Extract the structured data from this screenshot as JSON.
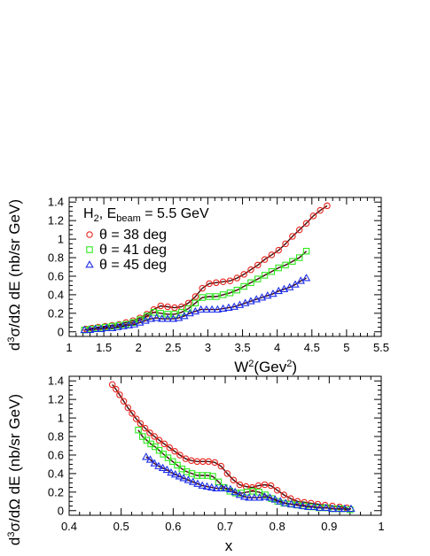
{
  "chart_data": [
    {
      "type": "scatter",
      "xlabel": "W²(Gev²)",
      "ylabel": "d³σ/dΩ dE (nb/sr GeV)",
      "xlim": [
        1,
        5.5
      ],
      "ylim": [
        -0.05,
        1.45
      ],
      "x_ticks": [
        "1",
        "1.5",
        "2",
        "2.5",
        "3",
        "3.5",
        "4",
        "4.5",
        "5",
        "5.5"
      ],
      "y_ticks": [
        "0",
        "0.2",
        "0.4",
        "0.6",
        "0.8",
        "1",
        "1.2",
        "1.4"
      ],
      "annotation": "H₂, E_beam = 5.5 GeV",
      "legend_position": "top-left",
      "series": [
        {
          "name": "θ = 38 deg",
          "marker": "circle",
          "color": "#e8251e",
          "points": [
            [
              1.24,
              0.03
            ],
            [
              1.33,
              0.04
            ],
            [
              1.42,
              0.05
            ],
            [
              1.52,
              0.06
            ],
            [
              1.62,
              0.07
            ],
            [
              1.72,
              0.08
            ],
            [
              1.82,
              0.1
            ],
            [
              1.92,
              0.12
            ],
            [
              2.02,
              0.15
            ],
            [
              2.12,
              0.19
            ],
            [
              2.22,
              0.24
            ],
            [
              2.32,
              0.28
            ],
            [
              2.42,
              0.27
            ],
            [
              2.52,
              0.26
            ],
            [
              2.62,
              0.27
            ],
            [
              2.72,
              0.31
            ],
            [
              2.82,
              0.38
            ],
            [
              2.92,
              0.47
            ],
            [
              3.02,
              0.52
            ],
            [
              3.12,
              0.53
            ],
            [
              3.22,
              0.54
            ],
            [
              3.32,
              0.55
            ],
            [
              3.42,
              0.58
            ],
            [
              3.52,
              0.62
            ],
            [
              3.62,
              0.67
            ],
            [
              3.72,
              0.72
            ],
            [
              3.82,
              0.78
            ],
            [
              3.92,
              0.83
            ],
            [
              4.02,
              0.88
            ],
            [
              4.12,
              0.95
            ],
            [
              4.22,
              1.03
            ],
            [
              4.32,
              1.1
            ],
            [
              4.42,
              1.17
            ],
            [
              4.52,
              1.25
            ],
            [
              4.62,
              1.31
            ],
            [
              4.72,
              1.36
            ]
          ]
        },
        {
          "name": "θ = 41 deg",
          "marker": "square",
          "color": "#2ee81e",
          "points": [
            [
              1.22,
              0.02
            ],
            [
              1.32,
              0.03
            ],
            [
              1.42,
              0.04
            ],
            [
              1.52,
              0.05
            ],
            [
              1.62,
              0.06
            ],
            [
              1.72,
              0.07
            ],
            [
              1.82,
              0.08
            ],
            [
              1.92,
              0.1
            ],
            [
              2.02,
              0.13
            ],
            [
              2.12,
              0.17
            ],
            [
              2.22,
              0.21
            ],
            [
              2.32,
              0.2
            ],
            [
              2.42,
              0.19
            ],
            [
              2.52,
              0.19
            ],
            [
              2.62,
              0.21
            ],
            [
              2.72,
              0.25
            ],
            [
              2.82,
              0.31
            ],
            [
              2.92,
              0.37
            ],
            [
              3.02,
              0.38
            ],
            [
              3.12,
              0.38
            ],
            [
              3.22,
              0.4
            ],
            [
              3.32,
              0.42
            ],
            [
              3.42,
              0.45
            ],
            [
              3.52,
              0.49
            ],
            [
              3.62,
              0.53
            ],
            [
              3.72,
              0.57
            ],
            [
              3.82,
              0.61
            ],
            [
              3.92,
              0.65
            ],
            [
              4.02,
              0.69
            ],
            [
              4.12,
              0.72
            ],
            [
              4.22,
              0.76
            ],
            [
              4.32,
              0.8
            ],
            [
              4.42,
              0.87
            ]
          ]
        },
        {
          "name": "θ = 45 deg",
          "marker": "triangle",
          "color": "#1e2ee8",
          "points": [
            [
              1.22,
              0.02
            ],
            [
              1.3,
              0.02
            ],
            [
              1.38,
              0.03
            ],
            [
              1.46,
              0.03
            ],
            [
              1.54,
              0.04
            ],
            [
              1.62,
              0.04
            ],
            [
              1.7,
              0.05
            ],
            [
              1.78,
              0.06
            ],
            [
              1.86,
              0.07
            ],
            [
              1.94,
              0.08
            ],
            [
              2.02,
              0.1
            ],
            [
              2.1,
              0.12
            ],
            [
              2.18,
              0.14
            ],
            [
              2.26,
              0.15
            ],
            [
              2.34,
              0.14
            ],
            [
              2.42,
              0.14
            ],
            [
              2.5,
              0.14
            ],
            [
              2.58,
              0.15
            ],
            [
              2.66,
              0.17
            ],
            [
              2.74,
              0.2
            ],
            [
              2.82,
              0.22
            ],
            [
              2.9,
              0.24
            ],
            [
              2.98,
              0.24
            ],
            [
              3.06,
              0.24
            ],
            [
              3.14,
              0.24
            ],
            [
              3.22,
              0.25
            ],
            [
              3.3,
              0.26
            ],
            [
              3.38,
              0.27
            ],
            [
              3.46,
              0.29
            ],
            [
              3.54,
              0.31
            ],
            [
              3.62,
              0.33
            ],
            [
              3.7,
              0.35
            ],
            [
              3.78,
              0.37
            ],
            [
              3.86,
              0.39
            ],
            [
              3.94,
              0.41
            ],
            [
              4.02,
              0.44
            ],
            [
              4.1,
              0.46
            ],
            [
              4.18,
              0.48
            ],
            [
              4.26,
              0.51
            ],
            [
              4.34,
              0.55
            ],
            [
              4.42,
              0.58
            ]
          ]
        }
      ]
    },
    {
      "type": "scatter",
      "xlabel": "x",
      "ylabel": "d³σ/dΩ dE (nb/sr GeV)",
      "xlim": [
        0.4,
        1.0
      ],
      "ylim": [
        -0.05,
        1.45
      ],
      "x_ticks": [
        "0.4",
        "0.5",
        "0.6",
        "0.7",
        "0.8",
        "0.9",
        "1"
      ],
      "y_ticks": [
        "0",
        "0.2",
        "0.4",
        "0.6",
        "0.8",
        "1",
        "1.2",
        "1.4"
      ],
      "series": [
        {
          "name": "θ = 38 deg",
          "marker": "circle",
          "color": "#e8251e",
          "points": [
            [
              0.483,
              1.36
            ],
            [
              0.49,
              1.31
            ],
            [
              0.497,
              1.25
            ],
            [
              0.505,
              1.18
            ],
            [
              0.513,
              1.11
            ],
            [
              0.521,
              1.05
            ],
            [
              0.529,
              0.99
            ],
            [
              0.537,
              0.94
            ],
            [
              0.546,
              0.89
            ],
            [
              0.555,
              0.84
            ],
            [
              0.564,
              0.8
            ],
            [
              0.573,
              0.76
            ],
            [
              0.583,
              0.72
            ],
            [
              0.593,
              0.68
            ],
            [
              0.603,
              0.64
            ],
            [
              0.613,
              0.6
            ],
            [
              0.624,
              0.56
            ],
            [
              0.635,
              0.54
            ],
            [
              0.646,
              0.53
            ],
            [
              0.657,
              0.53
            ],
            [
              0.668,
              0.53
            ],
            [
              0.68,
              0.52
            ],
            [
              0.692,
              0.48
            ],
            [
              0.704,
              0.4
            ],
            [
              0.716,
              0.33
            ],
            [
              0.728,
              0.28
            ],
            [
              0.74,
              0.26
            ],
            [
              0.752,
              0.25
            ],
            [
              0.764,
              0.27
            ],
            [
              0.776,
              0.28
            ],
            [
              0.788,
              0.27
            ],
            [
              0.8,
              0.22
            ],
            [
              0.813,
              0.17
            ],
            [
              0.826,
              0.13
            ],
            [
              0.839,
              0.1
            ],
            [
              0.852,
              0.09
            ],
            [
              0.865,
              0.08
            ],
            [
              0.878,
              0.07
            ],
            [
              0.892,
              0.06
            ],
            [
              0.906,
              0.05
            ],
            [
              0.92,
              0.04
            ],
            [
              0.934,
              0.03
            ]
          ]
        },
        {
          "name": "θ = 41 deg",
          "marker": "square",
          "color": "#2ee81e",
          "points": [
            [
              0.533,
              0.87
            ],
            [
              0.541,
              0.8
            ],
            [
              0.549,
              0.76
            ],
            [
              0.557,
              0.72
            ],
            [
              0.565,
              0.69
            ],
            [
              0.573,
              0.65
            ],
            [
              0.581,
              0.61
            ],
            [
              0.59,
              0.57
            ],
            [
              0.599,
              0.53
            ],
            [
              0.608,
              0.49
            ],
            [
              0.617,
              0.45
            ],
            [
              0.626,
              0.42
            ],
            [
              0.636,
              0.4
            ],
            [
              0.646,
              0.38
            ],
            [
              0.656,
              0.38
            ],
            [
              0.666,
              0.38
            ],
            [
              0.676,
              0.37
            ],
            [
              0.687,
              0.31
            ],
            [
              0.698,
              0.25
            ],
            [
              0.709,
              0.21
            ],
            [
              0.72,
              0.19
            ],
            [
              0.731,
              0.19
            ],
            [
              0.742,
              0.2
            ],
            [
              0.753,
              0.21
            ],
            [
              0.765,
              0.2
            ],
            [
              0.777,
              0.17
            ],
            [
              0.789,
              0.13
            ],
            [
              0.801,
              0.1
            ],
            [
              0.813,
              0.08
            ],
            [
              0.826,
              0.07
            ],
            [
              0.839,
              0.06
            ],
            [
              0.852,
              0.05
            ],
            [
              0.866,
              0.04
            ],
            [
              0.88,
              0.03
            ],
            [
              0.894,
              0.03
            ],
            [
              0.909,
              0.02
            ],
            [
              0.924,
              0.02
            ],
            [
              0.94,
              0.01
            ]
          ]
        },
        {
          "name": "θ = 45 deg",
          "marker": "triangle",
          "color": "#1e2ee8",
          "points": [
            [
              0.548,
              0.58
            ],
            [
              0.556,
              0.55
            ],
            [
              0.564,
              0.51
            ],
            [
              0.572,
              0.48
            ],
            [
              0.58,
              0.46
            ],
            [
              0.588,
              0.44
            ],
            [
              0.596,
              0.41
            ],
            [
              0.604,
              0.39
            ],
            [
              0.612,
              0.37
            ],
            [
              0.62,
              0.35
            ],
            [
              0.629,
              0.33
            ],
            [
              0.638,
              0.31
            ],
            [
              0.647,
              0.29
            ],
            [
              0.656,
              0.27
            ],
            [
              0.665,
              0.26
            ],
            [
              0.674,
              0.25
            ],
            [
              0.683,
              0.24
            ],
            [
              0.692,
              0.24
            ],
            [
              0.701,
              0.24
            ],
            [
              0.71,
              0.23
            ],
            [
              0.719,
              0.2
            ],
            [
              0.728,
              0.17
            ],
            [
              0.737,
              0.15
            ],
            [
              0.746,
              0.14
            ],
            [
              0.756,
              0.14
            ],
            [
              0.766,
              0.14
            ],
            [
              0.776,
              0.15
            ],
            [
              0.786,
              0.14
            ],
            [
              0.796,
              0.12
            ],
            [
              0.806,
              0.1
            ],
            [
              0.816,
              0.08
            ],
            [
              0.827,
              0.07
            ],
            [
              0.838,
              0.06
            ],
            [
              0.849,
              0.05
            ],
            [
              0.86,
              0.04
            ],
            [
              0.871,
              0.04
            ],
            [
              0.882,
              0.03
            ],
            [
              0.894,
              0.03
            ],
            [
              0.906,
              0.02
            ],
            [
              0.918,
              0.02
            ],
            [
              0.93,
              0.02
            ],
            [
              0.942,
              0.02
            ]
          ]
        }
      ]
    }
  ]
}
